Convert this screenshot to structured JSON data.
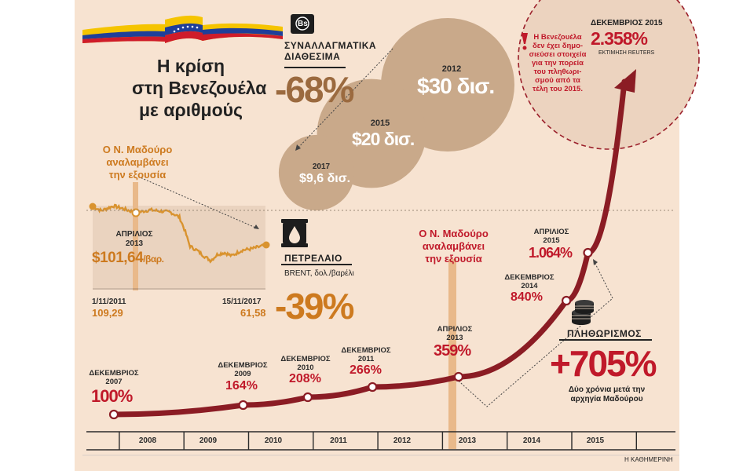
{
  "title_lines": [
    "Η κρίση",
    "στη Βενεζουέλα",
    "με αριθμούς"
  ],
  "colors": {
    "panel": "#f7e3d1",
    "inflation_line": "#8b1c24",
    "brent_line": "#d9932f",
    "brent_area": "#ead3bf",
    "bubble": "#c9a98a",
    "accent_red": "#c0192a",
    "orange": "#cd7a1f"
  },
  "reserves": {
    "label_lines": [
      "ΣΥΝΑΛΛΑΓΜΑΤΙΚΑ",
      "ΔΙΑΘΕΣΙΜΑ"
    ],
    "change": "-68%",
    "icon": "banknote-bs-icon",
    "icon_text": "Bs",
    "bubbles": [
      {
        "year": "2012",
        "value": "$30 δισ.",
        "amount": 30
      },
      {
        "year": "2015",
        "value": "$20 δισ.",
        "amount": 20
      },
      {
        "year": "2017",
        "value": "$9,6 δισ.",
        "amount": 9.6
      }
    ]
  },
  "oil": {
    "label": "ΠΕΤΡΕΛΑΙΟ",
    "unit": "BRENT, δολ./βαρέλι",
    "change": "-39%",
    "icon": "oil-drop-icon",
    "maduro_lines": [
      "Ο Ν. Μαδούρο",
      "αναλαμβάνει",
      "την εξουσία"
    ],
    "april_lines": [
      "ΑΠΡΙΛΙΟΣ",
      "2013"
    ],
    "april_value": "$101,64",
    "april_unit": "/βαρ.",
    "start_date": "1/11/2011",
    "start_value": "109,29",
    "end_date": "15/11/2017",
    "end_value": "61,58"
  },
  "inflation": {
    "section_label": "ΠΛΗΘΩΡΙΣΜΟΣ",
    "change": "+705%",
    "note_lines": [
      "Δύο χρόνια μετά την",
      "αρχηγία Μαδούρου"
    ],
    "icon": "coins-stack-icon",
    "maduro_lines": [
      "Ο Ν. Μαδούρο",
      "αναλαμβάνει",
      "την εξουσία"
    ],
    "years": [
      "2008",
      "2009",
      "2010",
      "2011",
      "2012",
      "2013",
      "2014",
      "2015"
    ],
    "dec2015_label": "ΔΕΚΕΜΒΡΙΟΣ 2015",
    "dec2015_value": "2.358%",
    "dec2015_note": "ΕΚΤΙΜΗΣΗ REUTERS",
    "no_data_lines": [
      "Η Βενεζουέλα",
      "δεν έχει δημο-",
      "σιεύσει στοιχεία",
      "για την πορεία",
      "του πληθωρι-",
      "σμού από τα",
      "τέλη του 2015."
    ],
    "points": [
      {
        "label_lines": [
          "ΔΕΚΕΜΒΡΙΟΣ",
          "2007"
        ],
        "value": "100%",
        "date": "2007-12",
        "pct": 100
      },
      {
        "label_lines": [
          "ΔΕΚΕΜΒΡΙΟΣ",
          "2009"
        ],
        "value": "164%",
        "date": "2009-12",
        "pct": 164
      },
      {
        "label_lines": [
          "ΔΕΚΕΜΒΡΙΟΣ",
          "2010"
        ],
        "value": "208%",
        "date": "2010-12",
        "pct": 208
      },
      {
        "label_lines": [
          "ΔΕΚΕΜΒΡΙΟΣ",
          "2011"
        ],
        "value": "266%",
        "date": "2011-12",
        "pct": 266
      },
      {
        "label_lines": [
          "ΑΠΡΙΛΙΟΣ",
          "2013"
        ],
        "value": "359%",
        "date": "2013-04",
        "pct": 359
      },
      {
        "label_lines": [
          "ΔΕΚΕΜΒΡΙΟΣ",
          "2014"
        ],
        "value": "840%",
        "date": "2014-12",
        "pct": 840
      },
      {
        "label_lines": [
          "ΑΠΡΙΛΙΟΣ",
          "2015"
        ],
        "value": "1.064%",
        "date": "2015-04",
        "pct": 1064
      }
    ]
  },
  "source": "Η ΚΑΘΗΜΕΡΙΝΗ",
  "chart_data": [
    {
      "type": "line",
      "series": [
        {
          "name": "Brent",
          "x": [
            "2011-11-01",
            "2013-04",
            "2017-11-15"
          ],
          "values": [
            109.29,
            101.64,
            61.58
          ]
        }
      ],
      "annotations": [
        "Ο Ν. Μαδούρο αναλαμβάνει την εξουσία",
        "ΑΠΡΙΛΙΟΣ 2013 $101,64 /βαρ."
      ]
    },
    {
      "type": "line",
      "x": [
        "2007-12",
        "2009-12",
        "2010-12",
        "2011-12",
        "2013-04",
        "2014-12",
        "2015-04",
        "2015-12"
      ],
      "values": [
        100,
        164,
        208,
        266,
        359,
        840,
        1064,
        2358
      ],
      "xticks": [
        "2008",
        "2009",
        "2010",
        "2011",
        "2012",
        "2013",
        "2014",
        "2015"
      ]
    },
    {
      "type": "bubble",
      "categories": [
        "2012",
        "2015",
        "2017"
      ],
      "values": [
        30,
        20,
        9.6
      ]
    }
  ]
}
